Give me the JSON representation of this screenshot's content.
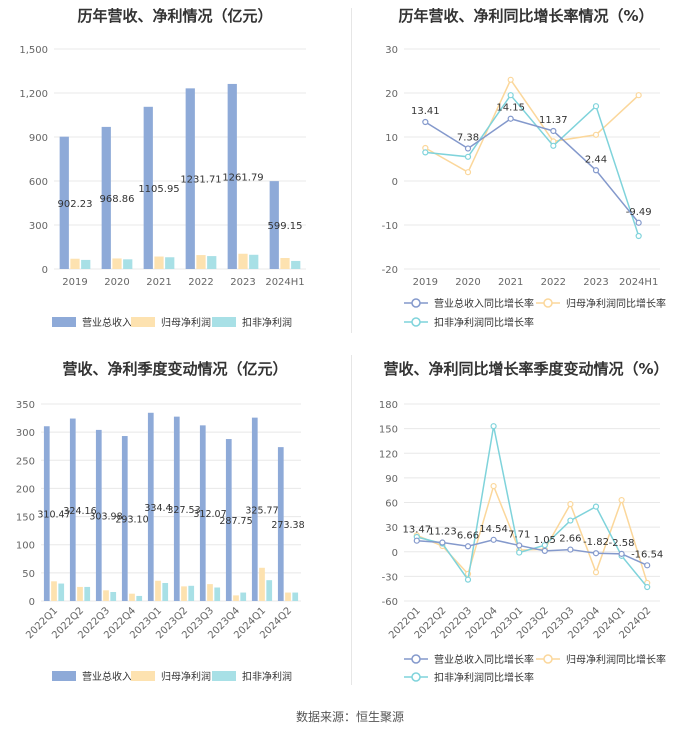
{
  "source": "数据来源：恒生聚源",
  "colors": {
    "revenue": "#8eaad8",
    "net_profit": "#fde2b0",
    "deducted_profit": "#a8e0e6",
    "rev_growth_line": "#8499cc",
    "np_growth_line": "#fbd79b",
    "dp_growth_line": "#7fd3db"
  },
  "charts": [
    {
      "title": "历年营收、净利情况（亿元）",
      "chart_data": {
        "type": "bar",
        "title": "历年营收、净利情况（亿元）",
        "categories": [
          "2019",
          "2020",
          "2021",
          "2022",
          "2023",
          "2024H1"
        ],
        "ylim": [
          0,
          1500
        ],
        "yticks": [
          "0",
          "300",
          "600",
          "900",
          "1,200",
          "1,500"
        ],
        "series": [
          {
            "name": "营业总收入",
            "values": [
              902.23,
              968.86,
              1105.95,
              1231.71,
              1261.79,
              599.15
            ],
            "labels": [
              "902.23",
              "968.86",
              "1105.95",
              "1231.71",
              "1261.79",
              "599.15"
            ]
          },
          {
            "name": "归母净利润",
            "values": [
              70,
              72,
              85,
              95,
              104,
              75
            ]
          },
          {
            "name": "扣非净利润",
            "values": [
              62,
              66,
              80,
              88,
              97,
              55
            ]
          }
        ],
        "legend": "bottom"
      }
    },
    {
      "title": "历年营收、净利同比增长率情况（%）",
      "chart_data": {
        "type": "line",
        "title": "历年营收、净利同比增长率情况（%）",
        "categories": [
          "2019",
          "2020",
          "2021",
          "2022",
          "2023",
          "2024H1"
        ],
        "ylim": [
          -20,
          30
        ],
        "yticks": [
          "-20",
          "-10",
          "0",
          "10",
          "20",
          "30"
        ],
        "series": [
          {
            "name": "营业总收入同比增长率",
            "values": [
              13.41,
              7.38,
              14.15,
              11.37,
              2.44,
              -9.49
            ],
            "labels": [
              "13.41",
              "7.38",
              "14.15",
              "11.37",
              "2.44",
              "-9.49"
            ]
          },
          {
            "name": "归母净利润同比增长率",
            "values": [
              7.5,
              2.0,
              23.0,
              9.0,
              10.5,
              19.5
            ]
          },
          {
            "name": "扣非净利润同比增长率",
            "values": [
              6.5,
              5.5,
              19.5,
              8.0,
              17.0,
              -12.5
            ]
          }
        ],
        "legend": "bottom"
      }
    },
    {
      "title": "营收、净利季度变动情况（亿元）",
      "chart_data": {
        "type": "bar",
        "title": "营收、净利季度变动情况（亿元）",
        "categories": [
          "2022Q1",
          "2022Q2",
          "2022Q3",
          "2022Q4",
          "2023Q1",
          "2023Q2",
          "2023Q3",
          "2023Q4",
          "2024Q1",
          "2024Q2"
        ],
        "ylim": [
          0,
          350
        ],
        "yticks": [
          "0",
          "50",
          "100",
          "150",
          "200",
          "250",
          "300",
          "350"
        ],
        "series": [
          {
            "name": "营业总收入",
            "values": [
              310.47,
              324.16,
              303.98,
              293.1,
              334.4,
              327.53,
              312.07,
              287.75,
              325.77,
              273.38
            ],
            "labels": [
              "310.47",
              "324.16",
              "303.98",
              "293.10",
              "334.4",
              "327.53",
              "312.07",
              "287.75",
              "325.77",
              "273.38"
            ]
          },
          {
            "name": "归母净利润",
            "values": [
              35,
              25,
              19,
              13,
              36,
              26,
              30,
              10,
              59,
              15
            ]
          },
          {
            "name": "扣非净利润",
            "values": [
              31,
              25,
              16,
              9,
              32,
              27,
              24,
              15,
              37,
              15
            ]
          }
        ],
        "legend": "bottom"
      }
    },
    {
      "title": "营收、净利同比增长率季度变动情况（%）",
      "chart_data": {
        "type": "line",
        "title": "营收、净利同比增长率季度变动情况（%）",
        "categories": [
          "2022Q1",
          "2022Q2",
          "2022Q3",
          "2022Q4",
          "2023Q1",
          "2023Q2",
          "2023Q3",
          "2023Q4",
          "2024Q1",
          "2024Q2"
        ],
        "ylim": [
          -60,
          180
        ],
        "yticks": [
          "-60",
          "-30",
          "0",
          "30",
          "60",
          "90",
          "120",
          "150",
          "180"
        ],
        "series": [
          {
            "name": "营业总收入同比增长率",
            "values": [
              13.47,
              11.23,
              6.66,
              14.54,
              7.71,
              1.05,
              2.66,
              -1.82,
              -2.58,
              -16.54
            ],
            "labels": [
              "13.47",
              "11.23",
              "6.66",
              "14.54",
              "7.71",
              "1.05",
              "2.66",
              "-1.82",
              "-2.58",
              "-16.54"
            ]
          },
          {
            "name": "归母净利润同比增长率",
            "values": [
              20,
              7,
              -27,
              80,
              2,
              3,
              58,
              -25,
              63,
              -38
            ]
          },
          {
            "name": "扣非净利润同比增长率",
            "values": [
              18,
              10,
              -34,
              153,
              -1,
              8,
              38,
              55,
              -5,
              -43
            ]
          }
        ],
        "legend": "bottom"
      }
    }
  ]
}
